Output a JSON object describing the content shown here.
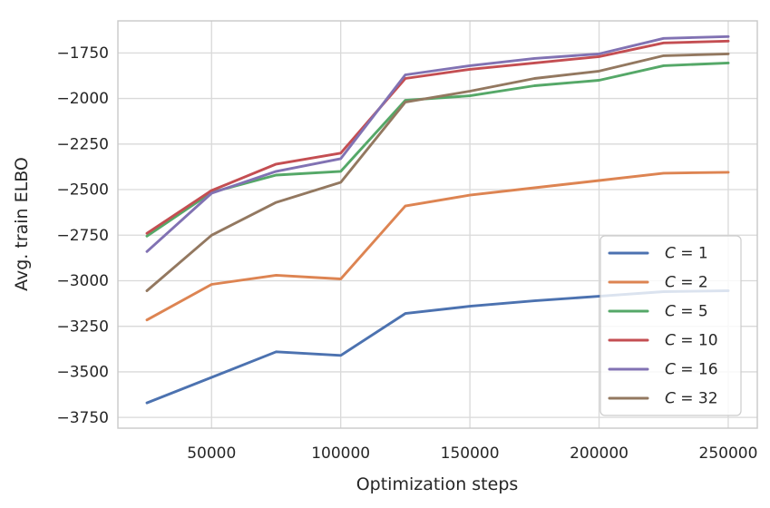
{
  "chart_data": {
    "type": "line",
    "title": "",
    "xlabel": "Optimization steps",
    "ylabel": "Avg. train ELBO",
    "x": [
      25000,
      50000,
      75000,
      100000,
      125000,
      150000,
      175000,
      200000,
      225000,
      250000
    ],
    "series": [
      {
        "name": "C = 1",
        "color": "#4C72B0",
        "values": [
          -3670,
          -3530,
          -3390,
          -3410,
          -3180,
          -3140,
          -3110,
          -3085,
          -3060,
          -3055
        ]
      },
      {
        "name": "C = 2",
        "color": "#DD8452",
        "values": [
          -3215,
          -3020,
          -2970,
          -2990,
          -2590,
          -2530,
          -2490,
          -2450,
          -2410,
          -2405
        ]
      },
      {
        "name": "C = 5",
        "color": "#55A868",
        "values": [
          -2755,
          -2515,
          -2420,
          -2400,
          -2010,
          -1985,
          -1930,
          -1900,
          -1820,
          -1805
        ]
      },
      {
        "name": "C = 10",
        "color": "#C44E52",
        "values": [
          -2740,
          -2505,
          -2360,
          -2300,
          -1890,
          -1840,
          -1805,
          -1770,
          -1695,
          -1685
        ]
      },
      {
        "name": "C = 16",
        "color": "#8172B3",
        "values": [
          -2840,
          -2520,
          -2400,
          -2330,
          -1870,
          -1820,
          -1780,
          -1755,
          -1670,
          -1660
        ]
      },
      {
        "name": "C = 32",
        "color": "#937860",
        "values": [
          -3055,
          -2750,
          -2570,
          -2460,
          -2020,
          -1960,
          -1890,
          -1850,
          -1765,
          -1755
        ]
      }
    ],
    "xticks": [
      {
        "value": 50000,
        "label": "50000"
      },
      {
        "value": 100000,
        "label": "100000"
      },
      {
        "value": 150000,
        "label": "150000"
      },
      {
        "value": 200000,
        "label": "200000"
      },
      {
        "value": 250000,
        "label": "250000"
      }
    ],
    "yticks": [
      {
        "value": -1750,
        "label": "−1750"
      },
      {
        "value": -2000,
        "label": "−2000"
      },
      {
        "value": -2250,
        "label": "−2250"
      },
      {
        "value": -2500,
        "label": "−2500"
      },
      {
        "value": -2750,
        "label": "−2750"
      },
      {
        "value": -3000,
        "label": "−3000"
      },
      {
        "value": -3250,
        "label": "−3250"
      },
      {
        "value": -3500,
        "label": "−3500"
      },
      {
        "value": -3750,
        "label": "−3750"
      }
    ],
    "xlim": [
      13750,
      261250
    ],
    "ylim": [
      -3809,
      -1574
    ],
    "grid": true,
    "legend_position": "lower right",
    "legend_labels": [
      "C = 1",
      "C = 2",
      "C = 5",
      "C = 10",
      "C = 16",
      "C = 32"
    ]
  },
  "style": {
    "grid_color": "#d9d9d9",
    "spine_color": "#c9c9c9",
    "legend_border_color": "#cccccc",
    "text_color": "#262626"
  }
}
